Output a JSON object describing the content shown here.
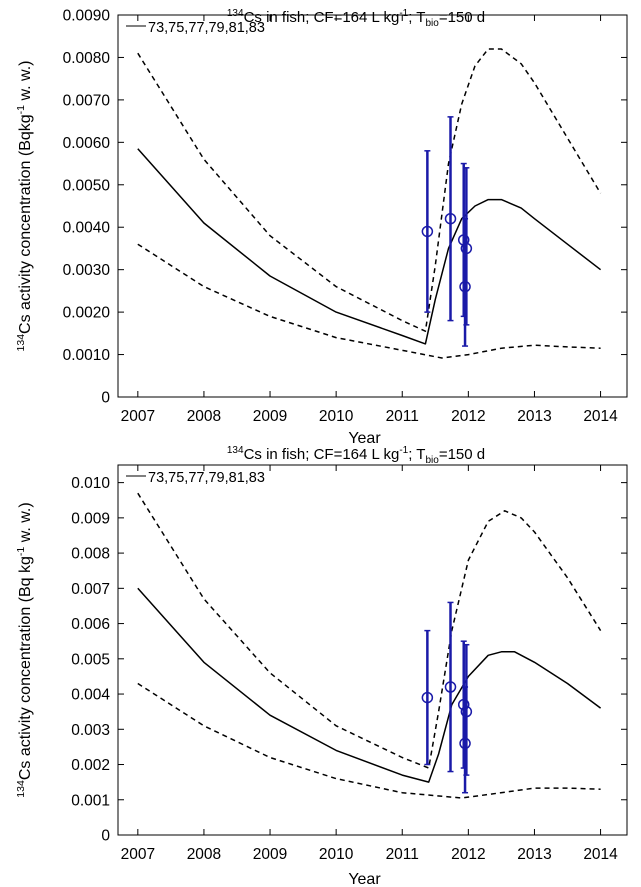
{
  "chart_data": [
    {
      "type": "line",
      "title": {
        "pre": "",
        "sup": "134",
        "main": "Cs in fish; CF=164 L kg",
        "sup2": "-1",
        "mid": "; T",
        "sub": "bio",
        "post": "=150 d"
      },
      "ylabel": {
        "sup": "134",
        "main": "Cs activity concentration (Bqkg",
        "sup2": "-1",
        "post": " w. w.)"
      },
      "xlabel": "Year",
      "xlim": [
        2006.7,
        2014.4
      ],
      "ylim": [
        0,
        0.009
      ],
      "x_ticks": [
        2007,
        2008,
        2009,
        2010,
        2011,
        2012,
        2013,
        2014
      ],
      "x_tick_labels": [
        "2007",
        "2008",
        "2009",
        "2010",
        "2011",
        "2012",
        "2013",
        "2014"
      ],
      "y_ticks": [
        0,
        0.001,
        0.002,
        0.003,
        0.004,
        0.005,
        0.006,
        0.007,
        0.008,
        0.009
      ],
      "y_tick_labels": [
        "0",
        "0.0010",
        "0.0020",
        "0.0030",
        "0.0040",
        "0.0050",
        "0.0060",
        "0.0070",
        "0.0080",
        "0.0090"
      ],
      "legend": {
        "label": "73,75,77,79,81,83",
        "position": "top-left"
      },
      "grid": false,
      "series": [
        {
          "style": "solid",
          "color": "#000000",
          "points": [
            [
              2007,
              0.00585
            ],
            [
              2008,
              0.0041
            ],
            [
              2009,
              0.00285
            ],
            [
              2010,
              0.002
            ],
            [
              2011,
              0.00145
            ],
            [
              2011.35,
              0.00125
            ],
            [
              2011.5,
              0.0023
            ],
            [
              2011.7,
              0.0035
            ],
            [
              2011.9,
              0.0042
            ],
            [
              2012.1,
              0.0045
            ],
            [
              2012.3,
              0.00465
            ],
            [
              2012.5,
              0.00465
            ],
            [
              2012.8,
              0.00445
            ],
            [
              2013,
              0.0042
            ],
            [
              2013.5,
              0.0036
            ],
            [
              2014,
              0.003
            ]
          ]
        },
        {
          "style": "dashed",
          "color": "#000000",
          "points": [
            [
              2007,
              0.0081
            ],
            [
              2008,
              0.0056
            ],
            [
              2009,
              0.0038
            ],
            [
              2010,
              0.0026
            ],
            [
              2011,
              0.0018
            ],
            [
              2011.35,
              0.00155
            ],
            [
              2011.5,
              0.0031
            ],
            [
              2011.7,
              0.0055
            ],
            [
              2011.9,
              0.0069
            ],
            [
              2012.1,
              0.0078
            ],
            [
              2012.3,
              0.0082
            ],
            [
              2012.5,
              0.0082
            ],
            [
              2012.8,
              0.00785
            ],
            [
              2013,
              0.0074
            ],
            [
              2013.5,
              0.0061
            ],
            [
              2014,
              0.0048
            ]
          ]
        },
        {
          "style": "dashed",
          "color": "#000000",
          "points": [
            [
              2007,
              0.0036
            ],
            [
              2008,
              0.0026
            ],
            [
              2009,
              0.0019
            ],
            [
              2010,
              0.0014
            ],
            [
              2011,
              0.0011
            ],
            [
              2011.6,
              0.00092
            ],
            [
              2012,
              0.001
            ],
            [
              2012.5,
              0.00115
            ],
            [
              2013,
              0.00122
            ],
            [
              2013.5,
              0.00118
            ],
            [
              2014,
              0.00115
            ]
          ]
        }
      ],
      "observations": [
        {
          "x": 2011.38,
          "y": 0.0039,
          "low": 0.002,
          "high": 0.0058
        },
        {
          "x": 2011.73,
          "y": 0.0042,
          "low": 0.0018,
          "high": 0.0066
        },
        {
          "x": 2011.93,
          "y": 0.0037,
          "low": 0.0019,
          "high": 0.0055
        },
        {
          "x": 2011.95,
          "y": 0.0026,
          "low": 0.0012,
          "high": 0.0042
        },
        {
          "x": 2011.97,
          "y": 0.0035,
          "low": 0.0017,
          "high": 0.0054
        }
      ],
      "observation_color": "#1a1aa8"
    },
    {
      "type": "line",
      "title": {
        "pre": "",
        "sup": "134",
        "main": "Cs in fish; CF=164 L kg",
        "sup2": "-1",
        "mid": "; T",
        "sub": "bio",
        "post": "=150 d"
      },
      "ylabel": {
        "sup": "134",
        "main": "Cs activity concentration (Bq kg",
        "sup2": "-1",
        "post": " w. w.)"
      },
      "xlabel": "Year",
      "xlim": [
        2006.7,
        2014.4
      ],
      "ylim": [
        0,
        0.0105
      ],
      "x_ticks": [
        2007,
        2008,
        2009,
        2010,
        2011,
        2012,
        2013,
        2014
      ],
      "x_tick_labels": [
        "2007",
        "2008",
        "2009",
        "2010",
        "2011",
        "2012",
        "2013",
        "2014"
      ],
      "y_ticks": [
        0,
        0.001,
        0.002,
        0.003,
        0.004,
        0.005,
        0.006,
        0.007,
        0.008,
        0.009,
        0.01
      ],
      "y_tick_labels": [
        "0",
        "0.001",
        "0.002",
        "0.003",
        "0.004",
        "0.005",
        "0.006",
        "0.007",
        "0.008",
        "0.009",
        "0.010"
      ],
      "legend": {
        "label": "73,75,77,79,81,83",
        "position": "top-left"
      },
      "grid": false,
      "series": [
        {
          "style": "solid",
          "color": "#000000",
          "points": [
            [
              2007,
              0.007
            ],
            [
              2008,
              0.0049
            ],
            [
              2009,
              0.0034
            ],
            [
              2010,
              0.0024
            ],
            [
              2011,
              0.0017
            ],
            [
              2011.4,
              0.0015
            ],
            [
              2011.55,
              0.0023
            ],
            [
              2011.75,
              0.0037
            ],
            [
              2012,
              0.0045
            ],
            [
              2012.3,
              0.0051
            ],
            [
              2012.5,
              0.0052
            ],
            [
              2012.7,
              0.0052
            ],
            [
              2013,
              0.0049
            ],
            [
              2013.5,
              0.0043
            ],
            [
              2014,
              0.0036
            ]
          ]
        },
        {
          "style": "dashed",
          "color": "#000000",
          "points": [
            [
              2007,
              0.0097
            ],
            [
              2008,
              0.0067
            ],
            [
              2009,
              0.0046
            ],
            [
              2010,
              0.0031
            ],
            [
              2011,
              0.0022
            ],
            [
              2011.4,
              0.0019
            ],
            [
              2011.55,
              0.0035
            ],
            [
              2011.75,
              0.0058
            ],
            [
              2012,
              0.0078
            ],
            [
              2012.3,
              0.0089
            ],
            [
              2012.55,
              0.0092
            ],
            [
              2012.8,
              0.009
            ],
            [
              2013,
              0.0086
            ],
            [
              2013.5,
              0.0073
            ],
            [
              2014,
              0.0058
            ]
          ]
        },
        {
          "style": "dashed",
          "color": "#000000",
          "points": [
            [
              2007,
              0.0043
            ],
            [
              2008,
              0.0031
            ],
            [
              2009,
              0.0022
            ],
            [
              2010,
              0.0016
            ],
            [
              2011,
              0.0012
            ],
            [
              2011.9,
              0.00105
            ],
            [
              2012.3,
              0.00115
            ],
            [
              2013,
              0.00133
            ],
            [
              2013.5,
              0.00133
            ],
            [
              2014,
              0.0013
            ]
          ]
        }
      ],
      "observations": [
        {
          "x": 2011.38,
          "y": 0.0039,
          "low": 0.002,
          "high": 0.0058
        },
        {
          "x": 2011.73,
          "y": 0.0042,
          "low": 0.0018,
          "high": 0.0066
        },
        {
          "x": 2011.93,
          "y": 0.0037,
          "low": 0.0019,
          "high": 0.0055
        },
        {
          "x": 2011.95,
          "y": 0.0026,
          "low": 0.0012,
          "high": 0.0042
        },
        {
          "x": 2011.97,
          "y": 0.0035,
          "low": 0.0017,
          "high": 0.0054
        }
      ],
      "observation_color": "#1a1aa8"
    }
  ]
}
